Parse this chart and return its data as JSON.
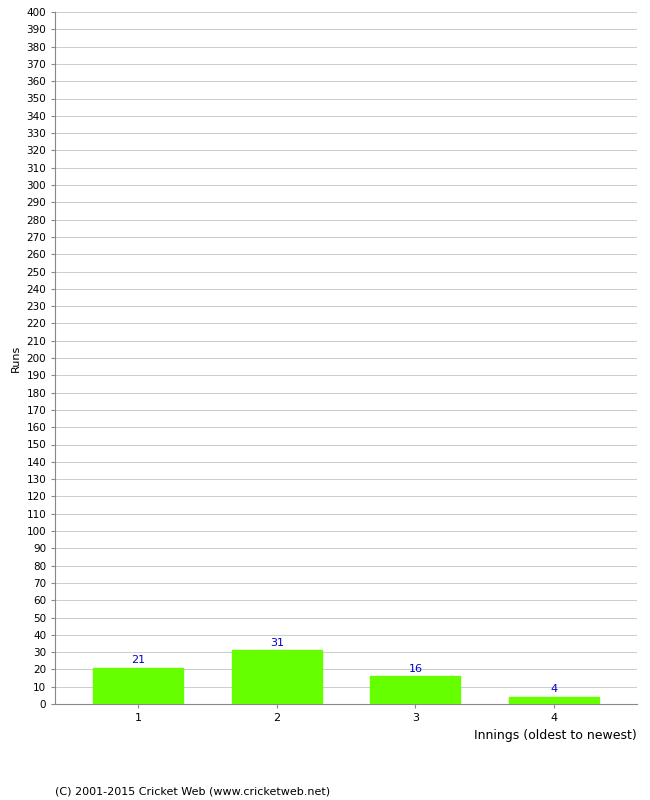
{
  "categories": [
    "1",
    "2",
    "3",
    "4"
  ],
  "values": [
    21,
    31,
    16,
    4
  ],
  "bar_color": "#66ff00",
  "bar_edgecolor": "#66ff00",
  "value_color": "#0000cc",
  "value_fontsize": 8,
  "xlabel": "Innings (oldest to newest)",
  "ylabel": "Runs",
  "ylim": [
    0,
    400
  ],
  "grid_color": "#cccccc",
  "background_color": "#ffffff",
  "footer": "(C) 2001-2015 Cricket Web (www.cricketweb.net)",
  "footer_fontsize": 8,
  "xlabel_fontsize": 9,
  "ylabel_fontsize": 8,
  "ytick_fontsize": 7.5,
  "xtick_fontsize": 8
}
